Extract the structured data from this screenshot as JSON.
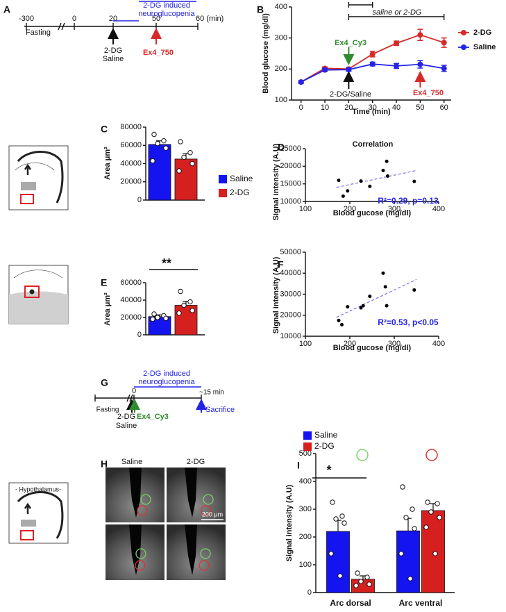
{
  "timeline_a": {
    "label": "A",
    "ticks": [
      "-300",
      "0",
      "20",
      "50",
      "60 (min)"
    ],
    "fasting": "Fasting",
    "period": [
      "2-DG induced",
      "neuroglucopenia"
    ],
    "treatment": [
      "2-DG",
      "Saline"
    ],
    "probe": "Ex4_750"
  },
  "timeline_g": {
    "label": "G",
    "start": "0",
    "end": "~15 min",
    "fasting": "Fasting",
    "period": [
      "2-DG induced",
      "neuroglucopenia"
    ],
    "treatment": [
      "2-DG",
      "Saline"
    ],
    "probe": "Ex4_Cy3",
    "sacrifice": "Sacrifice"
  },
  "panel_h": {
    "label": "H",
    "columns": [
      "Saline",
      "2-DG"
    ],
    "scale_bar": "200 μm",
    "schematic": "- Hypothalamus-"
  },
  "chart_data": [
    {
      "type": "line",
      "label": "B",
      "xlabel": "Time (min)",
      "ylabel": "Blood glucose (mg/dl)",
      "x": [
        0,
        10,
        20,
        30,
        40,
        50,
        60
      ],
      "xlim": [
        -4,
        63
      ],
      "xticks": [
        0,
        10,
        20,
        30,
        40,
        50,
        60
      ],
      "ylim": [
        100,
        400
      ],
      "yticks": [
        100,
        200,
        300,
        400
      ],
      "legend": "right",
      "series": [
        {
          "name": "2-DG",
          "color": "#d62a2a",
          "values": [
            158,
            202,
            200,
            248,
            283,
            310,
            285
          ],
          "errors": [
            4,
            5,
            5,
            9,
            7,
            18,
            15
          ]
        },
        {
          "name": "Saline",
          "color": "#2424e8",
          "values": [
            158,
            197,
            198,
            216,
            210,
            215,
            202
          ],
          "errors": [
            4,
            5,
            5,
            6,
            8,
            12,
            10
          ]
        }
      ],
      "annotations": [
        "saline or 2-DG",
        "Ex4_Cy3",
        "2-DG/Saline",
        "Ex4_750"
      ]
    },
    {
      "type": "bar",
      "label": "C",
      "ylabel": "Area μm²",
      "ylim": [
        0,
        80000
      ],
      "yticks": [
        0,
        20000,
        40000,
        60000,
        80000
      ],
      "legend": "right",
      "series": [
        {
          "name": "Saline",
          "color": "#1414f0",
          "values": [
            61000
          ],
          "errors": [
            4000
          ],
          "points": [
            [
              72000,
              65000,
              62000,
              57000,
              43000
            ]
          ]
        },
        {
          "name": "2-DG",
          "color": "#d62020",
          "values": [
            45000
          ],
          "errors": [
            6000
          ],
          "points": [
            [
              64000,
              52000,
              47000,
              40000,
              32000
            ]
          ]
        }
      ]
    },
    {
      "type": "scatter",
      "label": "D",
      "title": "Correlation",
      "xlabel": "Blood gucose (mg/dl)",
      "ylabel": "Signal intensity (A.U)",
      "x": [
        175,
        185,
        195,
        225,
        245,
        275,
        283,
        285,
        345
      ],
      "y": [
        16000,
        11500,
        13000,
        15800,
        14300,
        18800,
        21400,
        17200,
        15700
      ],
      "xlim": [
        100,
        400
      ],
      "xticks": [
        100,
        200,
        300,
        400
      ],
      "ylim": [
        10000,
        25000
      ],
      "yticks": [
        10000,
        15000,
        20000,
        25000
      ],
      "color": "#000000",
      "trend": {
        "x": [
          170,
          350
        ],
        "y": [
          14000,
          18800
        ],
        "color": "#7b6cf0"
      },
      "annotation": "R²=0.29, p=0.13"
    },
    {
      "type": "bar",
      "label": "E",
      "ylabel": "Area μm²",
      "ylim": [
        0,
        60000
      ],
      "yticks": [
        0,
        20000,
        40000,
        60000
      ],
      "annotation": "**",
      "series": [
        {
          "color": "#1414f0",
          "values": [
            21000
          ],
          "errors": [
            2000
          ],
          "points": [
            [
              24000,
              22000,
              20000,
              19000,
              18000
            ]
          ]
        },
        {
          "color": "#d62020",
          "values": [
            34000
          ],
          "errors": [
            4500
          ],
          "points": [
            [
              50000,
              38000,
              34000,
              28000,
              25000
            ]
          ]
        }
      ]
    },
    {
      "type": "scatter",
      "label": "F",
      "xlabel": "Blood gucose (mg/dl)",
      "ylabel": "Signal intensity (A.U)",
      "x": [
        175,
        182,
        195,
        225,
        230,
        245,
        275,
        280,
        283,
        345
      ],
      "y": [
        17500,
        15500,
        24000,
        23500,
        24500,
        29000,
        40000,
        33500,
        24500,
        32000
      ],
      "xlim": [
        100,
        400
      ],
      "xticks": [
        100,
        200,
        300,
        400
      ],
      "ylim": [
        10000,
        50000
      ],
      "yticks": [
        10000,
        20000,
        30000,
        40000,
        50000
      ],
      "color": "#000000",
      "trend": {
        "x": [
          170,
          350
        ],
        "y": [
          19000,
          37000
        ],
        "color": "#7b6cf0"
      },
      "annotation": "R²=0.53, p<0.05"
    },
    {
      "type": "bar",
      "label": "I",
      "ylabel": "Signal intensity (A.U)",
      "categories": [
        "Arc dorsal",
        "Arc ventral"
      ],
      "ylim": [
        0,
        500
      ],
      "yticks": [
        0,
        100,
        200,
        300,
        400,
        500
      ],
      "legend": "top",
      "annotation": "*",
      "series": [
        {
          "name": "Saline",
          "color": "#1414f0",
          "values": [
            220,
            222
          ],
          "errors": [
            40,
            45
          ],
          "points": [
            [
              325,
              275,
              265,
              250,
              140,
              60
            ],
            [
              380,
              300,
              270,
              230,
              140,
              50
            ]
          ]
        },
        {
          "name": "2-DG",
          "color": "#d62020",
          "values": [
            48,
            295
          ],
          "errors": [
            12,
            25
          ],
          "points": [
            [
              70,
              55,
              40,
              30,
              25
            ],
            [
              325,
              320,
              290,
              270,
              235,
              140
            ]
          ]
        }
      ]
    }
  ]
}
